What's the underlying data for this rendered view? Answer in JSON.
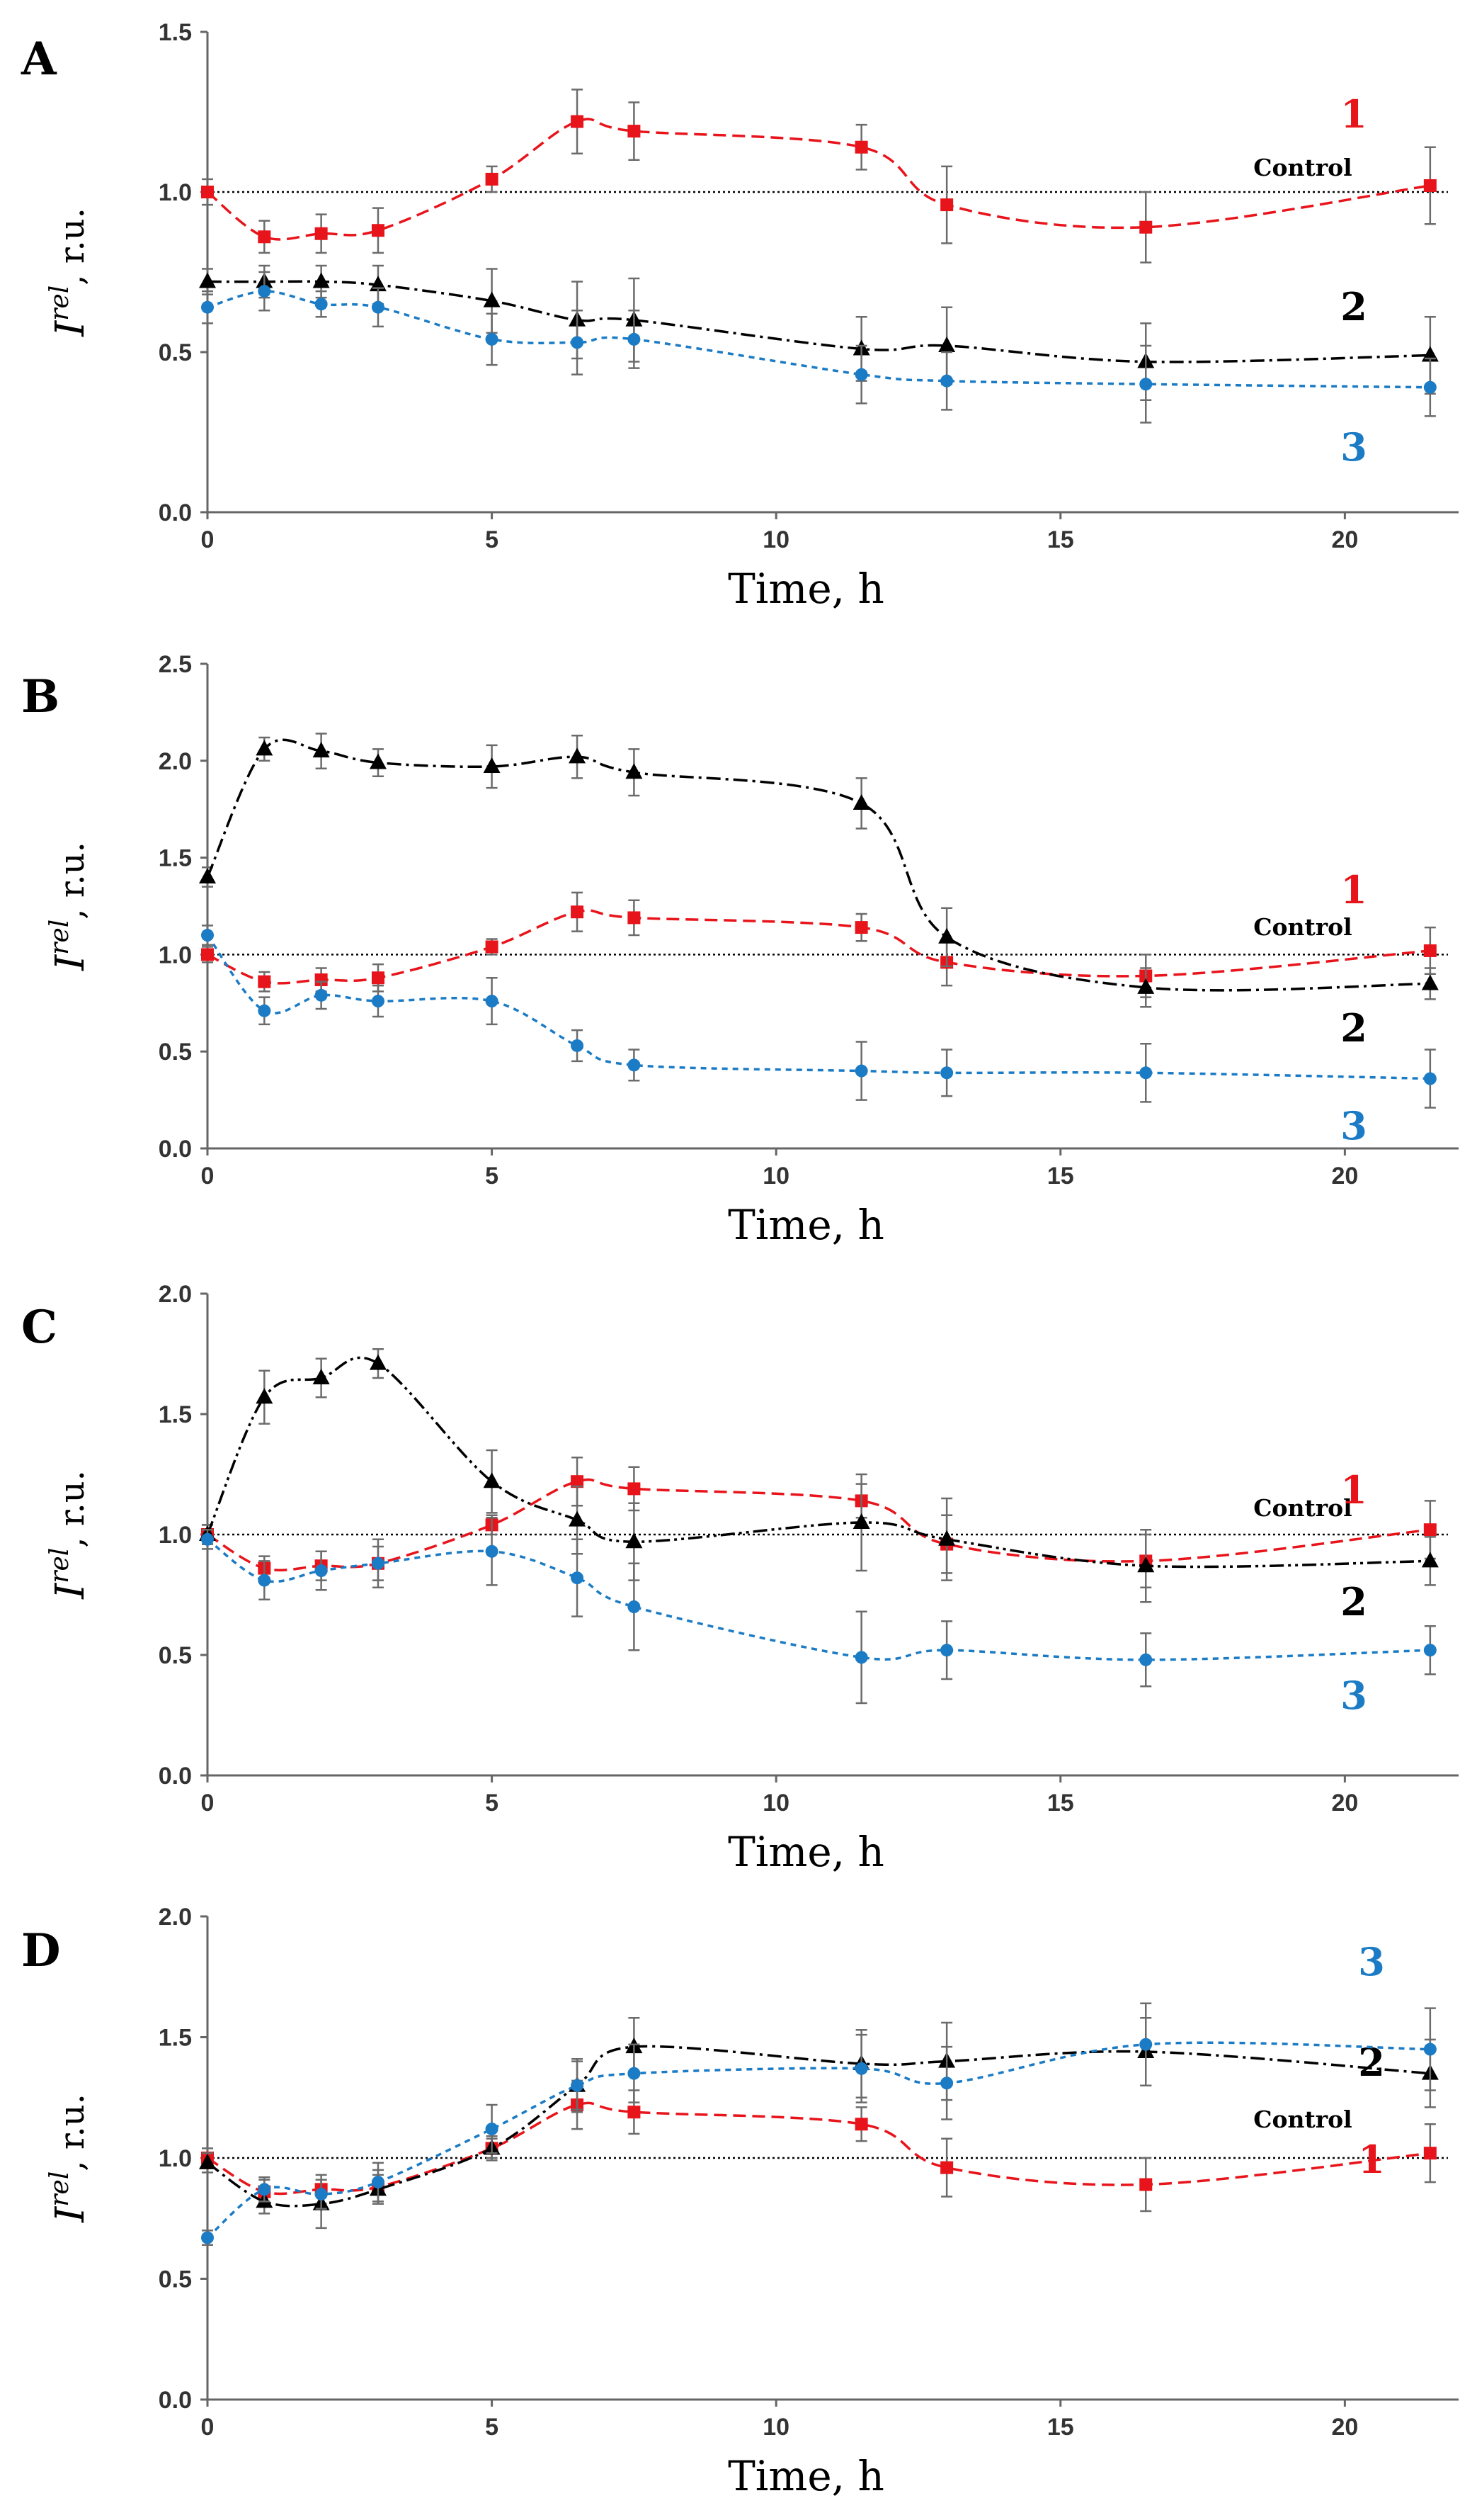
{
  "chart_data": [
    {
      "type": "line",
      "panel": "A",
      "xlabel": "Time, h",
      "ylabel": {
        "main": "I",
        "sup": "rel",
        "rest": ", r.u."
      },
      "xlim": [
        0,
        22
      ],
      "ylim": [
        0,
        1.5
      ],
      "xticks": [
        0,
        5,
        10,
        15,
        20
      ],
      "xtick_labels": [
        "0",
        "5",
        "10",
        "15",
        "20"
      ],
      "yticks": [
        0,
        0.5,
        1.0,
        1.5
      ],
      "ytick_labels": [
        "0.0",
        "0.5",
        "1.0",
        "1.5"
      ],
      "reference_line": {
        "label": "Control",
        "y": 1.0
      },
      "series": [
        {
          "name": "1",
          "color": "#e8141b",
          "dash": "18,9",
          "marker": "square",
          "x": [
            0,
            1,
            2,
            3,
            5,
            6.5,
            7.5,
            11.5,
            13,
            16.5,
            21.5
          ],
          "y": [
            1.0,
            0.86,
            0.87,
            0.88,
            1.04,
            1.22,
            1.19,
            1.14,
            0.96,
            0.89,
            1.02
          ],
          "err": [
            0.04,
            0.05,
            0.06,
            0.07,
            0.04,
            0.1,
            0.09,
            0.07,
            0.12,
            0.11,
            0.12
          ]
        },
        {
          "name": "2",
          "color": "#000000",
          "dash": "20,7,4,7",
          "marker": "triangle",
          "x": [
            0,
            1,
            2,
            3,
            5,
            6.5,
            7.5,
            11.5,
            13,
            16.5,
            21.5
          ],
          "y": [
            0.72,
            0.72,
            0.72,
            0.71,
            0.66,
            0.6,
            0.6,
            0.51,
            0.52,
            0.47,
            0.49
          ],
          "err": [
            0.04,
            0.05,
            0.05,
            0.06,
            0.1,
            0.12,
            0.13,
            0.1,
            0.12,
            0.12,
            0.12
          ]
        },
        {
          "name": "3",
          "color": "#1b7bc4",
          "dash": "8,7",
          "marker": "circle",
          "x": [
            0,
            1,
            2,
            3,
            5,
            6.5,
            7.5,
            11.5,
            13,
            16.5,
            21.5
          ],
          "y": [
            0.64,
            0.69,
            0.65,
            0.64,
            0.54,
            0.53,
            0.54,
            0.43,
            0.41,
            0.4,
            0.39
          ],
          "err": [
            0.05,
            0.06,
            0.04,
            0.06,
            0.08,
            0.1,
            0.09,
            0.09,
            0.09,
            0.12,
            0.09
          ]
        }
      ]
    },
    {
      "type": "line",
      "panel": "B",
      "xlabel": "Time, h",
      "ylabel": {
        "main": "I",
        "sup": "rel",
        "rest": ", r.u."
      },
      "xlim": [
        0,
        22
      ],
      "ylim": [
        0,
        2.5
      ],
      "xticks": [
        0,
        5,
        10,
        15,
        20
      ],
      "xtick_labels": [
        "0",
        "5",
        "10",
        "15",
        "20"
      ],
      "yticks": [
        0,
        0.5,
        1.0,
        1.5,
        2.0,
        2.5
      ],
      "ytick_labels": [
        "0.0",
        "0.5",
        "1.0",
        "1.5",
        "2.0",
        "2.5"
      ],
      "reference_line": {
        "label": "Control",
        "y": 1.0
      },
      "series": [
        {
          "name": "1",
          "color": "#e8141b",
          "dash": "18,9",
          "marker": "square",
          "x": [
            0,
            1,
            2,
            3,
            5,
            6.5,
            7.5,
            11.5,
            13,
            16.5,
            21.5
          ],
          "y": [
            1.0,
            0.86,
            0.87,
            0.88,
            1.04,
            1.22,
            1.19,
            1.14,
            0.96,
            0.89,
            1.02
          ],
          "err": [
            0.04,
            0.05,
            0.06,
            0.07,
            0.04,
            0.1,
            0.09,
            0.07,
            0.12,
            0.11,
            0.12
          ]
        },
        {
          "name": "2",
          "color": "#000000",
          "dash": "20,7,4,7",
          "marker": "triangle",
          "x": [
            0,
            1,
            2,
            3,
            5,
            6.5,
            7.5,
            11.5,
            13,
            16.5,
            21.5
          ],
          "y": [
            1.4,
            2.06,
            2.05,
            1.99,
            1.97,
            2.02,
            1.94,
            1.78,
            1.09,
            0.83,
            0.85
          ],
          "err": [
            0.05,
            0.06,
            0.09,
            0.07,
            0.11,
            0.11,
            0.12,
            0.13,
            0.15,
            0.1,
            0.08
          ]
        },
        {
          "name": "3",
          "color": "#1b7bc4",
          "dash": "8,7",
          "marker": "circle",
          "x": [
            0,
            1,
            2,
            3,
            5,
            6.5,
            7.5,
            11.5,
            13,
            16.5,
            21.5
          ],
          "y": [
            1.1,
            0.71,
            0.79,
            0.76,
            0.76,
            0.53,
            0.43,
            0.4,
            0.39,
            0.39,
            0.36
          ],
          "err": [
            0.05,
            0.07,
            0.07,
            0.08,
            0.12,
            0.08,
            0.08,
            0.15,
            0.12,
            0.15,
            0.15
          ]
        }
      ]
    },
    {
      "type": "line",
      "panel": "C",
      "xlabel": "Time, h",
      "ylabel": {
        "main": "I",
        "sup": "rel",
        "rest": ", r.u."
      },
      "xlim": [
        0,
        22
      ],
      "ylim": [
        0,
        2.0
      ],
      "xticks": [
        0,
        5,
        10,
        15,
        20
      ],
      "xtick_labels": [
        "0",
        "5",
        "10",
        "15",
        "20"
      ],
      "yticks": [
        0,
        0.5,
        1.0,
        1.5,
        2.0
      ],
      "ytick_labels": [
        "0.0",
        "0.5",
        "1.0",
        "1.5",
        "2.0"
      ],
      "reference_line": {
        "label": "Control",
        "y": 1.0
      },
      "series": [
        {
          "name": "1",
          "color": "#e8141b",
          "dash": "18,9",
          "marker": "square",
          "x": [
            0,
            1,
            2,
            3,
            5,
            6.5,
            7.5,
            11.5,
            13,
            16.5,
            21.5
          ],
          "y": [
            1.0,
            0.86,
            0.87,
            0.88,
            1.04,
            1.22,
            1.19,
            1.14,
            0.96,
            0.89,
            1.02
          ],
          "err": [
            0.04,
            0.05,
            0.06,
            0.07,
            0.04,
            0.1,
            0.09,
            0.07,
            0.12,
            0.11,
            0.12
          ]
        },
        {
          "name": "2",
          "color": "#000000",
          "dash": "20,6,4,6,4,6",
          "marker": "triangle",
          "x": [
            0,
            1,
            2,
            3,
            5,
            6.5,
            7.5,
            11.5,
            13,
            16.5,
            21.5
          ],
          "y": [
            1.0,
            1.57,
            1.65,
            1.71,
            1.22,
            1.06,
            0.97,
            1.05,
            0.98,
            0.87,
            0.89
          ],
          "err": [
            0.04,
            0.11,
            0.08,
            0.06,
            0.13,
            0.14,
            0.16,
            0.2,
            0.17,
            0.15,
            0.1
          ]
        },
        {
          "name": "3",
          "color": "#1b7bc4",
          "dash": "8,7",
          "marker": "circle",
          "x": [
            0,
            1,
            2,
            3,
            5,
            6.5,
            7.5,
            11.5,
            13,
            16.5,
            21.5
          ],
          "y": [
            0.98,
            0.81,
            0.85,
            0.88,
            0.93,
            0.82,
            0.7,
            0.49,
            0.52,
            0.48,
            0.52
          ],
          "err": [
            0.04,
            0.08,
            0.08,
            0.1,
            0.14,
            0.16,
            0.18,
            0.19,
            0.12,
            0.11,
            0.1
          ]
        }
      ]
    },
    {
      "type": "line",
      "panel": "D",
      "xlabel": "Time, h",
      "ylabel": {
        "main": "I",
        "sup": "rel",
        "rest": ", r.u."
      },
      "xlim": [
        0,
        22
      ],
      "ylim": [
        0,
        2.0
      ],
      "xticks": [
        0,
        5,
        10,
        15,
        20
      ],
      "xtick_labels": [
        "0",
        "5",
        "10",
        "15",
        "20"
      ],
      "yticks": [
        0,
        0.5,
        1.0,
        1.5,
        2.0
      ],
      "ytick_labels": [
        "0.0",
        "0.5",
        "1.0",
        "1.5",
        "2.0"
      ],
      "reference_line": {
        "label": "Control",
        "y": 1.0
      },
      "series": [
        {
          "name": "1",
          "color": "#e8141b",
          "dash": "18,9",
          "marker": "square",
          "x": [
            0,
            1,
            2,
            3,
            5,
            6.5,
            7.5,
            11.5,
            13,
            16.5,
            21.5
          ],
          "y": [
            1.0,
            0.86,
            0.87,
            0.88,
            1.04,
            1.22,
            1.19,
            1.14,
            0.96,
            0.89,
            1.02
          ],
          "err": [
            0.04,
            0.05,
            0.06,
            0.07,
            0.04,
            0.1,
            0.09,
            0.07,
            0.12,
            0.11,
            0.12
          ]
        },
        {
          "name": "2",
          "color": "#000000",
          "dash": "20,7,4,7",
          "marker": "triangle",
          "x": [
            0,
            1,
            2,
            3,
            5,
            6.5,
            7.5,
            11.5,
            13,
            16.5,
            21.5
          ],
          "y": [
            0.98,
            0.82,
            0.81,
            0.87,
            1.04,
            1.3,
            1.46,
            1.39,
            1.4,
            1.44,
            1.35
          ],
          "err": [
            0.04,
            0.05,
            0.1,
            0.06,
            0.05,
            0.1,
            0.12,
            0.14,
            0.16,
            0.14,
            0.14
          ]
        },
        {
          "name": "3",
          "color": "#1b7bc4",
          "dash": "8,7",
          "marker": "circle",
          "x": [
            0,
            1,
            2,
            3,
            5,
            6.5,
            7.5,
            11.5,
            13,
            16.5,
            21.5
          ],
          "y": [
            0.67,
            0.87,
            0.85,
            0.9,
            1.12,
            1.3,
            1.35,
            1.37,
            1.31,
            1.47,
            1.45
          ],
          "err": [
            0.03,
            0.05,
            0.06,
            0.08,
            0.1,
            0.11,
            0.12,
            0.14,
            0.15,
            0.17,
            0.17
          ]
        }
      ]
    }
  ]
}
